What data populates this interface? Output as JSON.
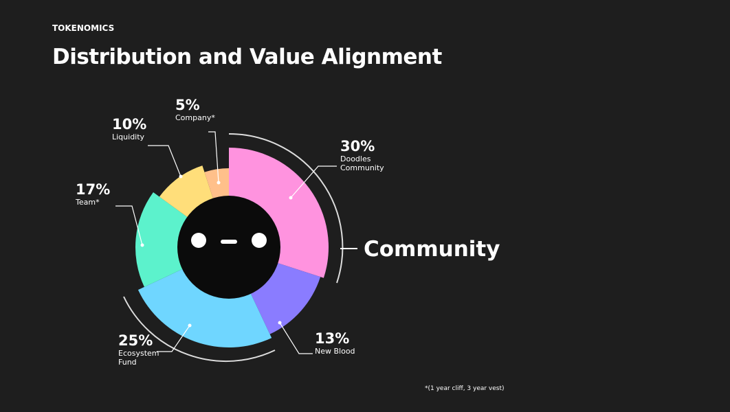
{
  "header": {
    "eyebrow": "TOKENOMICS",
    "title": "Distribution and Value Alignment"
  },
  "chart_data": {
    "type": "pie",
    "categories": [
      "Doodles Community",
      "New Blood",
      "Ecosystem Fund",
      "Team*",
      "Liquidity",
      "Company*"
    ],
    "values": [
      30,
      13,
      25,
      17,
      10,
      5
    ],
    "value_labels": [
      "30%",
      "13%",
      "25%",
      "17%",
      "10%",
      "5%"
    ],
    "colors": [
      "#ff93df",
      "#8a7cff",
      "#6fd6ff",
      "#5cf2cc",
      "#ffde7a",
      "#ffc08a"
    ],
    "annotation": "Community",
    "note": "*(1 year cliff, 3 year vest)"
  }
}
